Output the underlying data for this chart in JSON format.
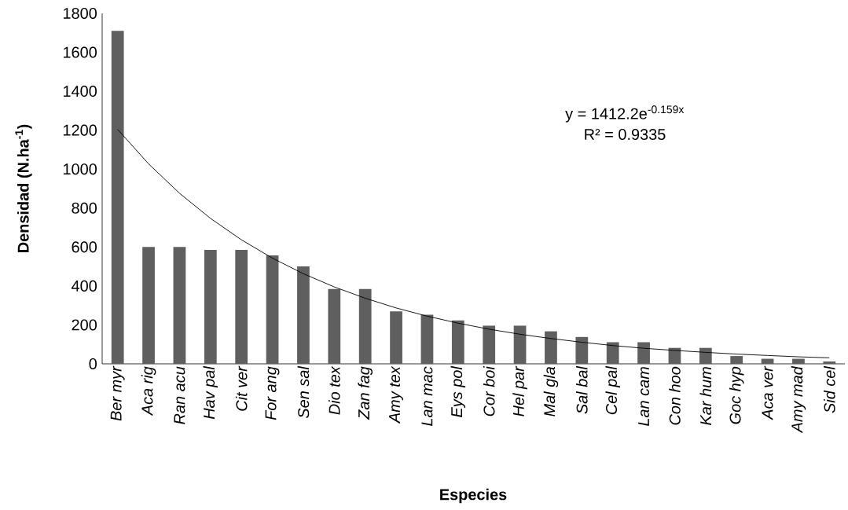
{
  "chart_data": {
    "type": "bar",
    "xlabel": "Especies",
    "ylabel": "Densidad (N.ha$^{-1}$)",
    "categories": [
      "Ber myr",
      "Aca rig",
      "Ran acu",
      "Hav pal",
      "Cit ver",
      "For ang",
      "Sen sal",
      "Dio tex",
      "Zan fag",
      "Amy tex",
      "Lan mac",
      "Eys pol",
      "Cor boi",
      "Hel par",
      "Mal gla",
      "Sal bal",
      "Cel pal",
      "Lan cam",
      "Con hoo",
      "Kar hum",
      "Goc hyp",
      "Aca ver",
      "Amy mad",
      "Sid cel"
    ],
    "series": [
      {
        "color": "#5f5f5f",
        "values": [
          1710,
          600,
          600,
          585,
          585,
          557,
          500,
          384,
          384,
          269,
          252,
          223,
          196,
          196,
          167,
          138,
          111,
          111,
          82,
          82,
          40,
          26,
          26,
          12
        ]
      },
      {
        "type": "line",
        "color": "#000000",
        "values": [
          1204,
          1027,
          876,
          747,
          637,
          543,
          463,
          395,
          337,
          287,
          245,
          209,
          178,
          152,
          130,
          111,
          94,
          80,
          69,
          59,
          50,
          43,
          36,
          31
        ]
      }
    ],
    "annotations": [
      "y = 1412.2e$^{-0.159x}$",
      "R² = 0.9335"
    ],
    "ylim": [
      0,
      1800
    ],
    "yticks": [
      0,
      200,
      400,
      600,
      800,
      1000,
      1200,
      1400,
      1600,
      1800
    ],
    "grid": false,
    "marker": "none"
  }
}
